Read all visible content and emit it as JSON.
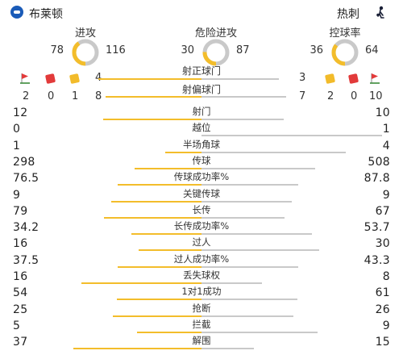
{
  "header": {
    "home_team": "布莱顿",
    "away_team": "热刺"
  },
  "rings": [
    {
      "title": "进攻",
      "home": "78",
      "away": "116",
      "home_share": 0.402
    },
    {
      "title": "危险进攻",
      "home": "30",
      "away": "87",
      "home_share": 0.256
    },
    {
      "title": "控球率",
      "home": "36",
      "away": "64",
      "home_share": 0.36
    }
  ],
  "colors": {
    "home": "#f3bd2b",
    "away": "#c9c9c9",
    "yellow_card": "#f2bb2a",
    "red_card": "#e23a3a"
  },
  "shots_on_target": {
    "label": "射正球门",
    "home": "4",
    "away": "3",
    "home_share": 0.571
  },
  "shots_off_target": {
    "label": "射偏球门",
    "home": "8",
    "away": "7",
    "home_share": 0.533
  },
  "home_counts": {
    "corners": "2",
    "red": "0",
    "yellow": "1"
  },
  "away_counts": {
    "yellow": "2",
    "red": "0",
    "corners": "10"
  },
  "stats": [
    {
      "label": "射门",
      "home": "12",
      "away": "10",
      "home_share": 0.545
    },
    {
      "label": "越位",
      "home": "0",
      "away": "1",
      "home_share": 0.0
    },
    {
      "label": "半场角球",
      "home": "1",
      "away": "4",
      "home_share": 0.2
    },
    {
      "label": "传球",
      "home": "298",
      "away": "508",
      "home_share": 0.37
    },
    {
      "label": "传球成功率%",
      "home": "76.5",
      "away": "87.8",
      "home_share": 0.466
    },
    {
      "label": "关键传球",
      "home": "9",
      "away": "9",
      "home_share": 0.5
    },
    {
      "label": "长传",
      "home": "79",
      "away": "67",
      "home_share": 0.541
    },
    {
      "label": "长传成功率%",
      "home": "34.2",
      "away": "53.7",
      "home_share": 0.389
    },
    {
      "label": "过人",
      "home": "16",
      "away": "30",
      "home_share": 0.348
    },
    {
      "label": "过人成功率%",
      "home": "37.5",
      "away": "43.3",
      "home_share": 0.464
    },
    {
      "label": "丢失球权",
      "home": "16",
      "away": "8",
      "home_share": 0.667
    },
    {
      "label": "1对1成功",
      "home": "54",
      "away": "61",
      "home_share": 0.47
    },
    {
      "label": "抢断",
      "home": "25",
      "away": "26",
      "home_share": 0.49
    },
    {
      "label": "拦截",
      "home": "5",
      "away": "9",
      "home_share": 0.357
    },
    {
      "label": "解围",
      "home": "37",
      "away": "15",
      "home_share": 0.712
    }
  ]
}
